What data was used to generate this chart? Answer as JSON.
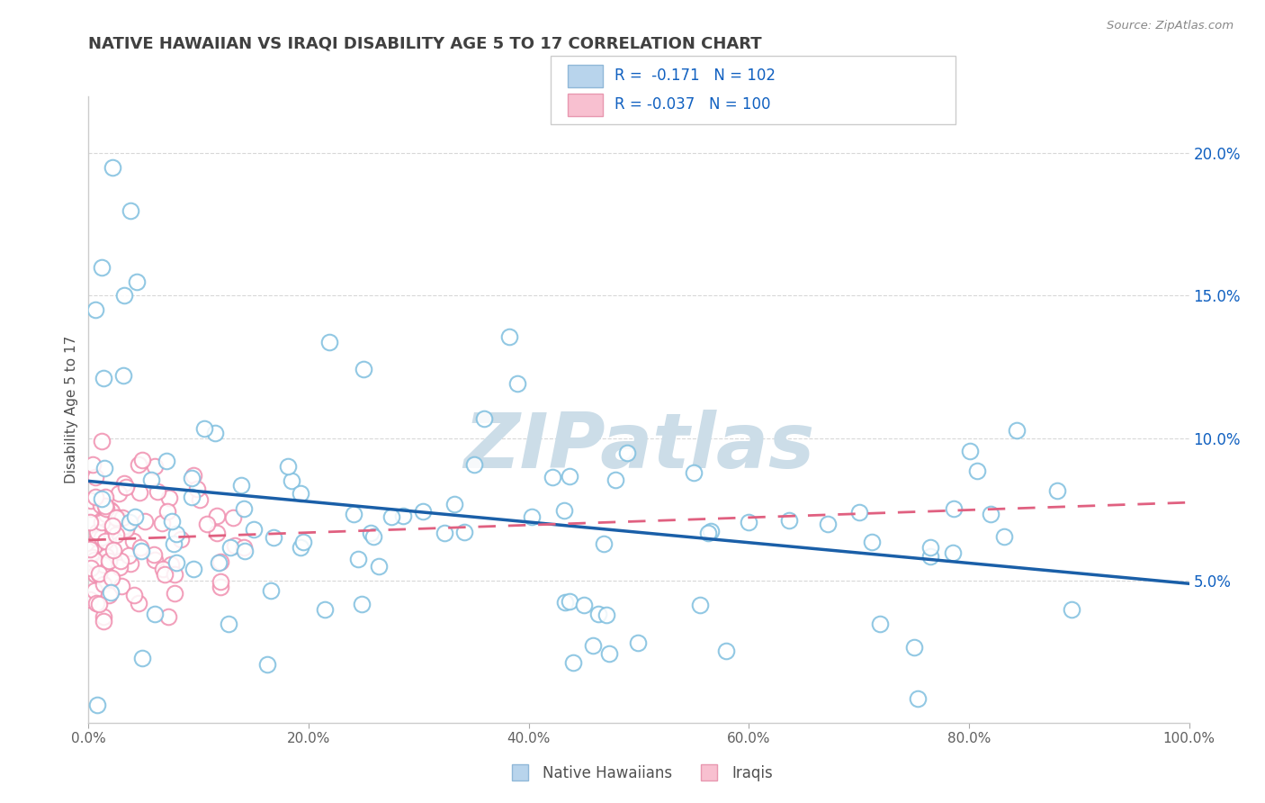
{
  "title": "NATIVE HAWAIIAN VS IRAQI DISABILITY AGE 5 TO 17 CORRELATION CHART",
  "source_text": "Source: ZipAtlas.com",
  "ylabel": "Disability Age 5 to 17",
  "xlim": [
    0,
    100
  ],
  "ylim": [
    0,
    22
  ],
  "xtick_labels": [
    "0.0%",
    "20.0%",
    "40.0%",
    "60.0%",
    "80.0%",
    "100.0%"
  ],
  "xtick_vals": [
    0,
    20,
    40,
    60,
    80,
    100
  ],
  "ytick_labels": [
    "5.0%",
    "10.0%",
    "15.0%",
    "20.0%"
  ],
  "ytick_vals": [
    5,
    10,
    15,
    20
  ],
  "blue_color": "#7fbfdf",
  "pink_color": "#f090b0",
  "blue_line_color": "#1a5fa8",
  "pink_line_color": "#e06080",
  "watermark": "ZIPatlas",
  "watermark_color": "#ccdde8",
  "background_color": "#ffffff",
  "grid_color": "#d8d8d8",
  "title_color": "#404040",
  "axis_label_color": "#505050",
  "tick_color": "#606060",
  "legend_r_color": "#1060c0",
  "right_ytick_color": "#1060c0",
  "legend_blue_fill": "#b8d4ec",
  "legend_blue_edge": "#90b8d8",
  "legend_pink_fill": "#f8c0d0",
  "legend_pink_edge": "#e898b0",
  "hawaiian_seed": 42,
  "iraqi_seed": 7
}
